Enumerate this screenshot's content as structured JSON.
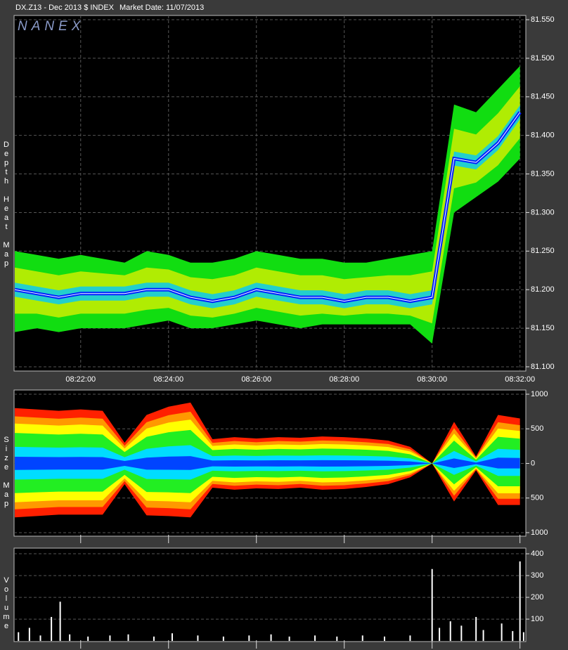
{
  "header": {
    "symbol": "DX.Z13 - Dec 2013 $ INDEX",
    "market_date": "Market Date: 11/07/2013",
    "logo": "NANEX"
  },
  "chart_data": [
    {
      "type": "heatmap-band",
      "axis_label": "Depth Heat Map",
      "xlim": [
        "08:20:29",
        "08:32:08"
      ],
      "xticks": [
        "08:22:00",
        "08:24:00",
        "08:26:00",
        "08:28:00",
        "08:30:00",
        "08:32:00"
      ],
      "x": [
        "08:20:30",
        "08:21:00",
        "08:21:30",
        "08:22:00",
        "08:22:30",
        "08:23:00",
        "08:23:30",
        "08:24:00",
        "08:24:30",
        "08:25:00",
        "08:25:30",
        "08:26:00",
        "08:26:30",
        "08:27:00",
        "08:27:30",
        "08:28:00",
        "08:28:30",
        "08:29:00",
        "08:29:30",
        "08:30:00",
        "08:30:30",
        "08:31:00",
        "08:31:30",
        "08:32:00"
      ],
      "high": [
        81.25,
        81.245,
        81.24,
        81.245,
        81.24,
        81.235,
        81.25,
        81.245,
        81.235,
        81.235,
        81.24,
        81.25,
        81.245,
        81.24,
        81.24,
        81.235,
        81.235,
        81.24,
        81.245,
        81.25,
        81.44,
        81.43,
        81.46,
        81.49
      ],
      "mid": [
        81.2,
        81.195,
        81.19,
        81.195,
        81.195,
        81.195,
        81.2,
        81.2,
        81.19,
        81.185,
        81.19,
        81.2,
        81.195,
        81.19,
        81.19,
        81.185,
        81.19,
        81.19,
        81.185,
        81.19,
        81.37,
        81.365,
        81.39,
        81.43
      ],
      "low": [
        81.145,
        81.15,
        81.145,
        81.15,
        81.15,
        81.15,
        81.155,
        81.16,
        81.15,
        81.15,
        81.155,
        81.16,
        81.155,
        81.15,
        81.155,
        81.155,
        81.155,
        81.155,
        81.155,
        81.13,
        81.3,
        81.32,
        81.34,
        81.37
      ],
      "ylim": [
        81.0945,
        81.5555
      ],
      "yticks": [
        {
          "value": 81.1,
          "label": "81.100"
        },
        {
          "value": 81.15,
          "label": "81.150"
        },
        {
          "value": 81.2,
          "label": "81.200"
        },
        {
          "value": 81.25,
          "label": "81.250"
        },
        {
          "value": 81.3,
          "label": "81.300"
        },
        {
          "value": 81.35,
          "label": "81.350"
        },
        {
          "value": 81.4,
          "label": "81.400"
        },
        {
          "value": 81.45,
          "label": "81.450"
        },
        {
          "value": 81.5,
          "label": "81.500"
        },
        {
          "value": 81.55,
          "label": "81.550"
        }
      ],
      "grid": true
    },
    {
      "type": "size-map",
      "axis_label": "Size Map",
      "x": [
        "08:20:30",
        "08:21:00",
        "08:21:30",
        "08:22:00",
        "08:22:30",
        "08:23:00",
        "08:23:30",
        "08:24:00",
        "08:24:30",
        "08:25:00",
        "08:25:30",
        "08:26:00",
        "08:26:30",
        "08:27:00",
        "08:27:30",
        "08:28:00",
        "08:28:30",
        "08:29:00",
        "08:29:30",
        "08:30:00",
        "08:30:30",
        "08:31:00",
        "08:31:30",
        "08:32:00"
      ],
      "upper": [
        800,
        780,
        760,
        780,
        760,
        300,
        700,
        820,
        880,
        350,
        380,
        360,
        380,
        370,
        390,
        380,
        360,
        330,
        240,
        0,
        600,
        100,
        700,
        650
      ],
      "lower": [
        -780,
        -760,
        -740,
        -740,
        -740,
        -300,
        -750,
        -760,
        -780,
        -350,
        -380,
        -360,
        -370,
        -350,
        -380,
        -370,
        -340,
        -300,
        -200,
        0,
        -550,
        -100,
        -600,
        -600
      ],
      "ylim": [
        -1051,
        1061
      ],
      "yticks": [
        {
          "value": -1000,
          "label": "1000"
        },
        {
          "value": -500,
          "label": "500"
        },
        0,
        500,
        1000
      ],
      "grid": true
    },
    {
      "type": "bar",
      "axis_label": "Volume",
      "color": "#ffffff",
      "x": [
        "08:20:35",
        "08:20:50",
        "08:21:05",
        "08:21:20",
        "08:21:32",
        "08:21:45",
        "08:22:10",
        "08:22:40",
        "08:23:05",
        "08:23:40",
        "08:24:05",
        "08:24:40",
        "08:25:15",
        "08:25:50",
        "08:26:20",
        "08:26:45",
        "08:27:20",
        "08:27:50",
        "08:28:25",
        "08:28:55",
        "08:29:30",
        "08:30:00",
        "08:30:10",
        "08:30:25",
        "08:30:40",
        "08:31:00",
        "08:31:10",
        "08:31:35",
        "08:31:50",
        "08:32:00",
        "08:32:05"
      ],
      "values": [
        40,
        60,
        25,
        110,
        180,
        30,
        20,
        25,
        30,
        20,
        35,
        25,
        20,
        25,
        30,
        20,
        25,
        20,
        25,
        20,
        25,
        330,
        60,
        90,
        70,
        110,
        50,
        80,
        45,
        365,
        40
      ],
      "ylim": [
        -3,
        426
      ],
      "yticks": [
        100,
        200,
        300,
        400
      ],
      "grid": true
    }
  ]
}
